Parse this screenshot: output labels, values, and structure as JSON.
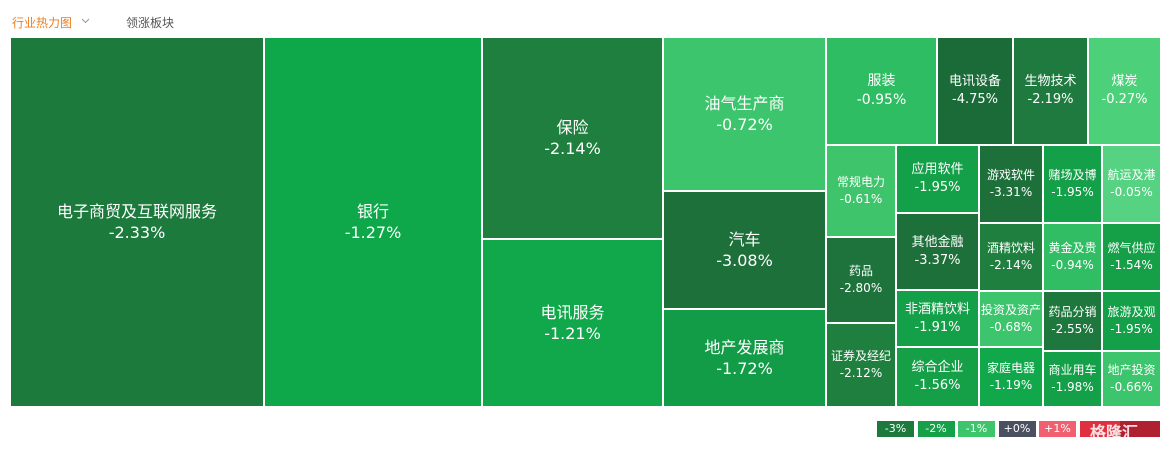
{
  "tabs": [
    "行业热力图",
    "领涨板块"
  ],
  "tiles": [
    {
      "label": "电子商贸及互联网服务",
      "change": "-2.33%",
      "color": "#1d7a3d"
    },
    {
      "label": "银行",
      "change": "-1.27%",
      "color": "#0ea84a"
    },
    {
      "label": "保险",
      "change": "-2.14%",
      "color": "#1f7f3f"
    },
    {
      "label": "电讯服务",
      "change": "-1.21%",
      "color": "#10a84a"
    },
    {
      "label": "油气生产商",
      "change": "-0.72%",
      "color": "#3cc56c"
    },
    {
      "label": "汽车",
      "change": "-3.08%",
      "color": "#1e703b"
    },
    {
      "label": "地产发展商",
      "change": "-1.72%",
      "color": "#139c47"
    },
    {
      "label": "服装",
      "change": "-0.95%",
      "color": "#2fbd63"
    },
    {
      "label": "电讯设备",
      "change": "-4.75%",
      "color": "#1b6b38"
    },
    {
      "label": "生物技术",
      "change": "-2.19%",
      "color": "#1e7a3e"
    },
    {
      "label": "煤炭",
      "change": "-0.27%",
      "color": "#4cd07a"
    },
    {
      "label": "常规电力",
      "change": "-0.61%",
      "color": "#3ec56c"
    },
    {
      "label": "应用软件",
      "change": "-1.95%",
      "color": "#14a048"
    },
    {
      "label": "游戏软件",
      "change": "-3.31%",
      "color": "#1e703b"
    },
    {
      "label": "赌场及博",
      "change": "-1.95%",
      "color": "#14a048"
    },
    {
      "label": "航运及港",
      "change": "-0.05%",
      "color": "#55d382"
    },
    {
      "label": "药品",
      "change": "-2.80%",
      "color": "#1e733c"
    },
    {
      "label": "其他金融",
      "change": "-3.37%",
      "color": "#1e703b"
    },
    {
      "label": "酒精饮料",
      "change": "-2.14%",
      "color": "#1f7f3f"
    },
    {
      "label": "黄金及贵",
      "change": "-0.94%",
      "color": "#31bd63"
    },
    {
      "label": "燃气供应",
      "change": "-1.54%",
      "color": "#15a048"
    },
    {
      "label": "非酒精饮料",
      "change": "-1.91%",
      "color": "#14a048"
    },
    {
      "label": "证券及经纪",
      "change": "-2.12%",
      "color": "#1f7f3f"
    },
    {
      "label": "投资及资产",
      "change": "-0.68%",
      "color": "#3cc56c"
    },
    {
      "label": "药品分销",
      "change": "-2.55%",
      "color": "#1e773d"
    },
    {
      "label": "旅游及观",
      "change": "-1.95%",
      "color": "#14a048"
    },
    {
      "label": "综合企业",
      "change": "-1.56%",
      "color": "#15a048"
    },
    {
      "label": "家庭电器",
      "change": "-1.19%",
      "color": "#10a84a"
    },
    {
      "label": "商业用车",
      "change": "-1.98%",
      "color": "#14a048"
    },
    {
      "label": "地产投资",
      "change": "-0.66%",
      "color": "#3cc56c"
    }
  ],
  "legend": [
    {
      "label": "-3%",
      "color": "#1d7a3d"
    },
    {
      "label": "-2%",
      "color": "#16a048"
    },
    {
      "label": "-1%",
      "color": "#3ec56c"
    },
    {
      "label": "+0%",
      "color": "#4a5060"
    },
    {
      "label": "+1%",
      "color": "#f06070"
    }
  ],
  "watermark": "格隆汇"
}
